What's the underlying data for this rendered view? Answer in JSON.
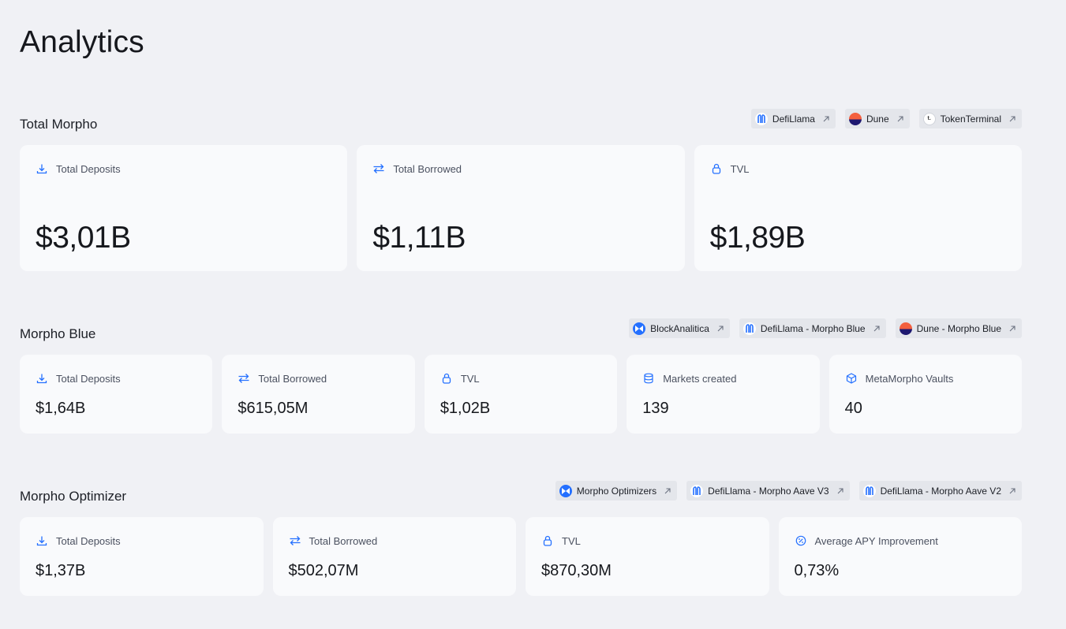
{
  "page": {
    "title": "Analytics"
  },
  "total_morpho": {
    "title": "Total Morpho",
    "links": [
      {
        "label": "DefiLlama",
        "logo": "defillama-logo"
      },
      {
        "label": "Dune",
        "logo": "dune-logo"
      },
      {
        "label": "TokenTerminal",
        "logo": "tokenterminal-logo",
        "logo_text": "t."
      }
    ],
    "cards": [
      {
        "label": "Total Deposits",
        "value": "$3,01B",
        "icon": "download-icon"
      },
      {
        "label": "Total Borrowed",
        "value": "$1,11B",
        "icon": "swap-arrows-icon"
      },
      {
        "label": "TVL",
        "value": "$1,89B",
        "icon": "lock-icon"
      }
    ]
  },
  "morpho_blue": {
    "title": "Morpho Blue",
    "links": [
      {
        "label": "BlockAnalitica",
        "logo": "morpho-logo"
      },
      {
        "label": "DefiLlama - Morpho Blue",
        "logo": "defillama-logo"
      },
      {
        "label": "Dune - Morpho Blue",
        "logo": "dune-logo"
      }
    ],
    "cards": [
      {
        "label": "Total Deposits",
        "value": "$1,64B",
        "icon": "download-icon"
      },
      {
        "label": "Total Borrowed",
        "value": "$615,05M",
        "icon": "swap-arrows-icon"
      },
      {
        "label": "TVL",
        "value": "$1,02B",
        "icon": "lock-icon"
      },
      {
        "label": "Markets created",
        "value": "139",
        "icon": "database-icon"
      },
      {
        "label": "MetaMorpho Vaults",
        "value": "40",
        "icon": "cube-icon"
      }
    ]
  },
  "morpho_optimizer": {
    "title": "Morpho Optimizer",
    "links": [
      {
        "label": "Morpho Optimizers",
        "logo": "morpho-logo"
      },
      {
        "label": "DefiLlama - Morpho Aave V3",
        "logo": "defillama-logo"
      },
      {
        "label": "DefiLlama - Morpho Aave V2",
        "logo": "defillama-logo"
      }
    ],
    "cards": [
      {
        "label": "Total Deposits",
        "value": "$1,37B",
        "icon": "download-icon"
      },
      {
        "label": "Total Borrowed",
        "value": "$502,07M",
        "icon": "swap-arrows-icon"
      },
      {
        "label": "TVL",
        "value": "$870,30M",
        "icon": "lock-icon"
      },
      {
        "label": "Average APY Improvement",
        "value": "0,73%",
        "icon": "percent-badge-icon"
      }
    ]
  },
  "colors": {
    "background": "#f0f1f5",
    "card": "#f9fafc",
    "chip": "#e4e6eb",
    "accent": "#2470ff",
    "text": "#16181d"
  }
}
